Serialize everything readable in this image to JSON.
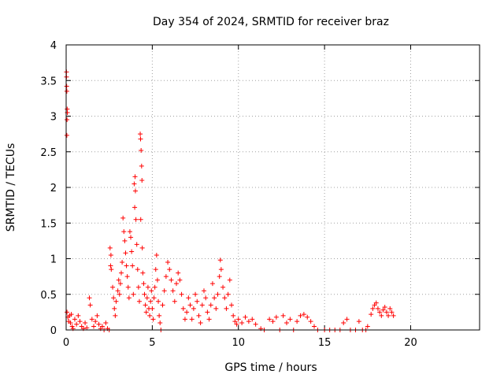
{
  "chart_data": {
    "type": "scatter",
    "title": "Day 354 of 2024, SRMTID for receiver braz",
    "xlabel": "GPS time / hours",
    "ylabel": "SRMTID / TECUs",
    "xlim": [
      0,
      24
    ],
    "ylim": [
      0,
      4
    ],
    "x_ticks": [
      0,
      5,
      10,
      15,
      20
    ],
    "x_tick_labels": [
      "0",
      "5",
      "10",
      "15",
      "20"
    ],
    "y_ticks": [
      0,
      0.5,
      1,
      1.5,
      2,
      2.5,
      3,
      3.5,
      4
    ],
    "y_tick_labels": [
      "0",
      "0.5",
      "1",
      "1.5",
      "2",
      "2.5",
      "3",
      "3.5",
      "4"
    ],
    "grid": true,
    "marker": "+",
    "series": [
      {
        "name": "SRMTID",
        "color": "#ff0000",
        "points": [
          [
            0.02,
            3.62
          ],
          [
            0.02,
            3.55
          ],
          [
            0.03,
            3.42
          ],
          [
            0.04,
            3.35
          ],
          [
            0.06,
            3.1
          ],
          [
            0.07,
            3.05
          ],
          [
            0.05,
            2.95
          ],
          [
            0.04,
            2.73
          ],
          [
            0.05,
            0.25
          ],
          [
            0.1,
            0.18
          ],
          [
            0.15,
            0.12
          ],
          [
            0.2,
            0.2
          ],
          [
            0.25,
            0.1
          ],
          [
            0.3,
            0.22
          ],
          [
            0.35,
            0.05
          ],
          [
            0.4,
            0.02
          ],
          [
            0.5,
            0.15
          ],
          [
            0.6,
            0.08
          ],
          [
            0.7,
            0.2
          ],
          [
            0.8,
            0.12
          ],
          [
            0.9,
            0.05
          ],
          [
            1.0,
            0.02
          ],
          [
            1.1,
            0.1
          ],
          [
            1.2,
            0.03
          ],
          [
            1.35,
            0.45
          ],
          [
            1.4,
            0.35
          ],
          [
            1.5,
            0.15
          ],
          [
            1.6,
            0.05
          ],
          [
            1.7,
            0.12
          ],
          [
            1.8,
            0.2
          ],
          [
            1.9,
            0.08
          ],
          [
            2.0,
            0.02
          ],
          [
            2.1,
            0.05
          ],
          [
            2.2,
            0.0
          ],
          [
            2.3,
            0.1
          ],
          [
            2.4,
            0.02
          ],
          [
            2.5,
            0.0
          ],
          [
            2.55,
            1.15
          ],
          [
            2.6,
            1.05
          ],
          [
            2.58,
            0.9
          ],
          [
            2.62,
            0.85
          ],
          [
            2.7,
            0.6
          ],
          [
            2.75,
            0.45
          ],
          [
            2.8,
            0.3
          ],
          [
            2.85,
            0.2
          ],
          [
            2.9,
            0.4
          ],
          [
            3.0,
            0.55
          ],
          [
            3.05,
            0.7
          ],
          [
            3.1,
            0.5
          ],
          [
            3.15,
            0.65
          ],
          [
            3.2,
            0.8
          ],
          [
            3.25,
            0.95
          ],
          [
            3.3,
            1.57
          ],
          [
            3.35,
            1.38
          ],
          [
            3.4,
            1.25
          ],
          [
            3.45,
            1.08
          ],
          [
            3.5,
            0.9
          ],
          [
            3.55,
            0.75
          ],
          [
            3.6,
            0.6
          ],
          [
            3.65,
            0.45
          ],
          [
            3.7,
            1.38
          ],
          [
            3.75,
            1.3
          ],
          [
            3.8,
            1.1
          ],
          [
            3.85,
            0.9
          ],
          [
            3.9,
            0.5
          ],
          [
            3.95,
            2.05
          ],
          [
            4.0,
            2.15
          ],
          [
            4.02,
            1.95
          ],
          [
            3.98,
            1.72
          ],
          [
            4.05,
            1.55
          ],
          [
            4.1,
            1.2
          ],
          [
            4.15,
            0.85
          ],
          [
            4.2,
            0.6
          ],
          [
            4.25,
            0.4
          ],
          [
            4.3,
            2.75
          ],
          [
            4.32,
            2.68
          ],
          [
            4.35,
            2.52
          ],
          [
            4.38,
            2.3
          ],
          [
            4.4,
            2.1
          ],
          [
            4.33,
            1.55
          ],
          [
            4.42,
            1.15
          ],
          [
            4.45,
            0.8
          ],
          [
            4.5,
            0.65
          ],
          [
            4.55,
            0.5
          ],
          [
            4.6,
            0.35
          ],
          [
            4.65,
            0.25
          ],
          [
            4.7,
            0.45
          ],
          [
            4.75,
            0.6
          ],
          [
            4.8,
            0.3
          ],
          [
            4.85,
            0.2
          ],
          [
            4.9,
            0.4
          ],
          [
            4.95,
            0.55
          ],
          [
            5.0,
            0.3
          ],
          [
            5.05,
            0.15
          ],
          [
            5.1,
            0.45
          ],
          [
            5.15,
            0.6
          ],
          [
            5.2,
            0.85
          ],
          [
            5.25,
            1.05
          ],
          [
            5.3,
            0.7
          ],
          [
            5.35,
            0.4
          ],
          [
            5.4,
            0.2
          ],
          [
            5.45,
            0.1
          ],
          [
            5.5,
            0.0
          ],
          [
            5.6,
            0.35
          ],
          [
            5.7,
            0.55
          ],
          [
            5.8,
            0.75
          ],
          [
            5.9,
            0.95
          ],
          [
            6.0,
            0.85
          ],
          [
            6.1,
            0.7
          ],
          [
            6.2,
            0.55
          ],
          [
            6.3,
            0.4
          ],
          [
            6.4,
            0.65
          ],
          [
            6.5,
            0.8
          ],
          [
            6.6,
            0.7
          ],
          [
            6.7,
            0.5
          ],
          [
            6.8,
            0.3
          ],
          [
            6.9,
            0.15
          ],
          [
            7.0,
            0.25
          ],
          [
            7.1,
            0.45
          ],
          [
            7.2,
            0.35
          ],
          [
            7.3,
            0.15
          ],
          [
            7.4,
            0.3
          ],
          [
            7.5,
            0.5
          ],
          [
            7.6,
            0.4
          ],
          [
            7.7,
            0.2
          ],
          [
            7.8,
            0.1
          ],
          [
            7.9,
            0.35
          ],
          [
            8.0,
            0.55
          ],
          [
            8.1,
            0.45
          ],
          [
            8.2,
            0.25
          ],
          [
            8.3,
            0.15
          ],
          [
            8.4,
            0.35
          ],
          [
            8.5,
            0.65
          ],
          [
            8.6,
            0.45
          ],
          [
            8.7,
            0.3
          ],
          [
            8.8,
            0.5
          ],
          [
            8.9,
            0.75
          ],
          [
            8.95,
            0.98
          ],
          [
            9.0,
            0.85
          ],
          [
            9.1,
            0.6
          ],
          [
            9.2,
            0.45
          ],
          [
            9.3,
            0.3
          ],
          [
            9.4,
            0.5
          ],
          [
            9.5,
            0.7
          ],
          [
            9.6,
            0.35
          ],
          [
            9.7,
            0.2
          ],
          [
            9.8,
            0.12
          ],
          [
            9.9,
            0.08
          ],
          [
            10.0,
            0.15
          ],
          [
            10.2,
            0.1
          ],
          [
            10.4,
            0.18
          ],
          [
            10.6,
            0.12
          ],
          [
            10.8,
            0.15
          ],
          [
            11.0,
            0.08
          ],
          [
            11.3,
            0.02
          ],
          [
            11.5,
            0.0
          ],
          [
            11.8,
            0.15
          ],
          [
            12.0,
            0.12
          ],
          [
            12.2,
            0.18
          ],
          [
            12.4,
            0.0
          ],
          [
            12.6,
            0.2
          ],
          [
            12.8,
            0.1
          ],
          [
            13.0,
            0.15
          ],
          [
            13.2,
            0.0
          ],
          [
            13.4,
            0.12
          ],
          [
            13.6,
            0.2
          ],
          [
            13.8,
            0.22
          ],
          [
            14.0,
            0.18
          ],
          [
            14.2,
            0.12
          ],
          [
            14.4,
            0.05
          ],
          [
            14.6,
            0.0
          ],
          [
            15.0,
            0.0
          ],
          [
            15.3,
            0.0
          ],
          [
            15.6,
            0.0
          ],
          [
            15.9,
            0.0
          ],
          [
            16.1,
            0.1
          ],
          [
            16.3,
            0.15
          ],
          [
            16.5,
            0.0
          ],
          [
            16.8,
            0.0
          ],
          [
            17.0,
            0.12
          ],
          [
            17.2,
            0.0
          ],
          [
            17.4,
            0.0
          ],
          [
            17.5,
            0.05
          ],
          [
            17.7,
            0.22
          ],
          [
            17.8,
            0.3
          ],
          [
            17.9,
            0.35
          ],
          [
            18.0,
            0.38
          ],
          [
            18.1,
            0.3
          ],
          [
            18.2,
            0.25
          ],
          [
            18.3,
            0.2
          ],
          [
            18.4,
            0.28
          ],
          [
            18.5,
            0.32
          ],
          [
            18.6,
            0.25
          ],
          [
            18.7,
            0.2
          ],
          [
            18.8,
            0.3
          ],
          [
            18.9,
            0.25
          ],
          [
            19.0,
            0.2
          ]
        ]
      }
    ]
  }
}
